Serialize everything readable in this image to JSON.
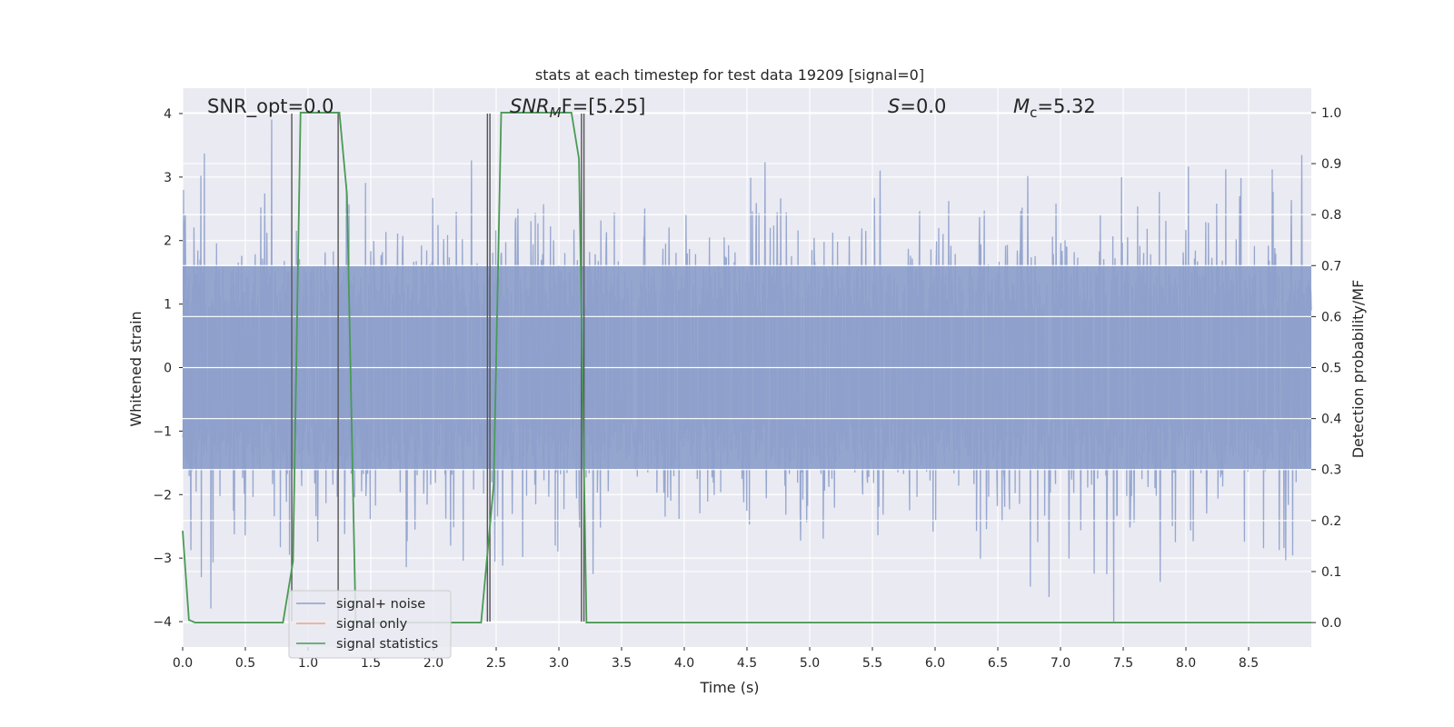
{
  "chart_data": {
    "type": "line",
    "title": "stats at each timestep for test data 19209 [signal=0]",
    "xlabel": "Time (s)",
    "ylabel": "Whitened strain",
    "y2label": "Detection probability/MF",
    "xlim": [
      0,
      9.0
    ],
    "ylim": [
      -4.4,
      4.4
    ],
    "y2lim": [
      -0.048,
      1.048
    ],
    "xticks": [
      0.0,
      0.5,
      1.0,
      1.5,
      2.0,
      2.5,
      3.0,
      3.5,
      4.0,
      4.5,
      5.0,
      5.5,
      6.0,
      6.5,
      7.0,
      7.5,
      8.0,
      8.5
    ],
    "xtick_labels": [
      "0.0",
      "0.5",
      "1.0",
      "1.5",
      "2.0",
      "2.5",
      "3.0",
      "3.5",
      "4.0",
      "4.5",
      "5.0",
      "5.5",
      "6.0",
      "6.5",
      "7.0",
      "7.5",
      "8.0",
      "8.5"
    ],
    "yticks": [
      -4,
      -3,
      -2,
      -1,
      0,
      1,
      2,
      3,
      4
    ],
    "ytick_labels": [
      "−4",
      "−3",
      "−2",
      "−1",
      "0",
      "1",
      "2",
      "3",
      "4"
    ],
    "y2ticks": [
      0.0,
      0.1,
      0.2,
      0.3,
      0.4,
      0.5,
      0.6,
      0.7,
      0.8,
      0.9,
      1.0
    ],
    "y2tick_labels": [
      "0.0",
      "0.1",
      "0.2",
      "0.3",
      "0.4",
      "0.5",
      "0.6",
      "0.7",
      "0.8",
      "0.9",
      "1.0"
    ],
    "grid": true,
    "legend_position": "lower-left",
    "annotations": {
      "snr_opt": "SNR_opt=0.0",
      "snr_mf_main": "SNR",
      "snr_mf_sub": "M",
      "snr_mf_rest": "F=[5.25]",
      "s_italic": "S",
      "s_rest": "=0.0",
      "mc_italic": "M",
      "mc_sub": "c",
      "mc_rest": "=5.32"
    },
    "series": [
      {
        "name": "signal+ noise",
        "color": "#8da0cb",
        "axis": "left",
        "kind": "noise",
        "envelope": 1.6,
        "description_only": false
      },
      {
        "name": "signal only",
        "color": "#e8a58b",
        "axis": "left",
        "x": [],
        "y": []
      },
      {
        "name": "signal statistics",
        "color": "#4a9a55",
        "axis": "right",
        "x": [
          0.0,
          0.05,
          0.1,
          0.8,
          0.88,
          0.94,
          1.0,
          1.25,
          1.31,
          1.38,
          2.3,
          2.38,
          2.48,
          2.54,
          3.1,
          3.16,
          3.22,
          3.29,
          9.0
        ],
        "y": [
          0.18,
          0.005,
          0.0,
          0.0,
          0.12,
          1.0,
          1.0,
          1.0,
          0.84,
          0.0,
          0.0,
          0.0,
          0.27,
          1.0,
          1.0,
          0.91,
          0.0,
          0.0,
          0.0
        ]
      }
    ],
    "vertical_markers": {
      "color": "#555555",
      "x": [
        0.87,
        1.24,
        2.43,
        2.45,
        3.18,
        3.2
      ]
    }
  }
}
